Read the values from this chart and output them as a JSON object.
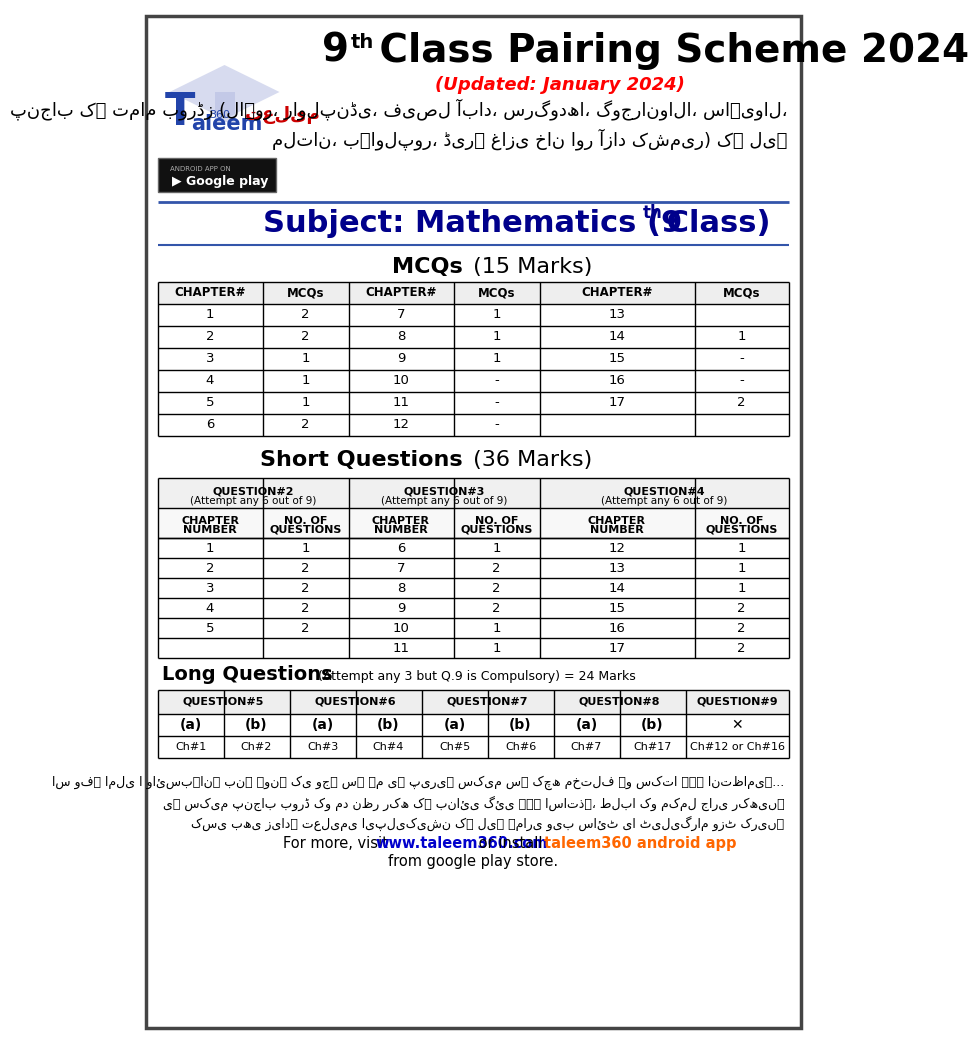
{
  "title_line1": "9th Class Pairing Scheme 2024",
  "title_updated": "(Updated: January 2024)",
  "urdu_line1": "پنجاب کے تمام بورڈز (لاہور، راولپنڈی، فیصل آباد، سرگودھا، گوجرانوالا، ساہیوال،",
  "urdu_line2": "ملتان، بہاولپور، ڈیرہ غازی خان اور آزاد کشمیر) کے لیے",
  "mcq_headers": [
    "CHAPTER#",
    "MCQs",
    "CHAPTER#",
    "MCQs",
    "CHAPTER#",
    "MCQs"
  ],
  "mcq_rows": [
    [
      "1",
      "2",
      "7",
      "1",
      "13",
      ""
    ],
    [
      "2",
      "2",
      "8",
      "1",
      "14",
      "1"
    ],
    [
      "3",
      "1",
      "9",
      "1",
      "15",
      "-"
    ],
    [
      "4",
      "1",
      "10",
      "-",
      "16",
      "-"
    ],
    [
      "5",
      "1",
      "11",
      "-",
      "17",
      "2"
    ],
    [
      "6",
      "2",
      "12",
      "-",
      "",
      ""
    ]
  ],
  "sq_rows": [
    [
      "1",
      "1",
      "6",
      "1",
      "12",
      "1"
    ],
    [
      "2",
      "2",
      "7",
      "2",
      "13",
      "1"
    ],
    [
      "3",
      "2",
      "8",
      "2",
      "14",
      "1"
    ],
    [
      "4",
      "2",
      "9",
      "2",
      "15",
      "2"
    ],
    [
      "5",
      "2",
      "10",
      "1",
      "16",
      "2"
    ],
    [
      "",
      "",
      "11",
      "1",
      "17",
      "2"
    ]
  ],
  "lq_headers": [
    "QUESTION#5",
    "QUESTION#6",
    "QUESTION#7",
    "QUESTION#8",
    "QUESTION#9"
  ],
  "lq_sub_headers": [
    "(a)",
    "(b)",
    "(a)",
    "(b)",
    "(a)",
    "(b)",
    "(a)",
    "(b)",
    "✕"
  ],
  "lq_values": [
    "Ch#1",
    "Ch#2",
    "Ch#3",
    "Ch#4",
    "Ch#5",
    "Ch#6",
    "Ch#7",
    "Ch#17",
    "Ch#12 or Ch#16"
  ],
  "footer_urdu1": "اس وفہ املی ا وائسبہانہ بنے ہونے کی وجہ سے ہم یہ پیریہ سکیم سے کچھ مختلف ہو سکتا ہے۔ انتظامیہ...",
  "footer_urdu2": "یہ سکیم پنجاب بورڈ کو مد نظر رکھ کے بنائی گئی ہے۔ اساتذہ، طلبا کو مکمل جاری رکھیں۔",
  "footer_urdu3": "کسی بھی زیادہ تعلیمی ایپلیکیشن کے لیے ہماری ویب سائٹ یا ٹیلیگرام وزٹ کریں۔"
}
